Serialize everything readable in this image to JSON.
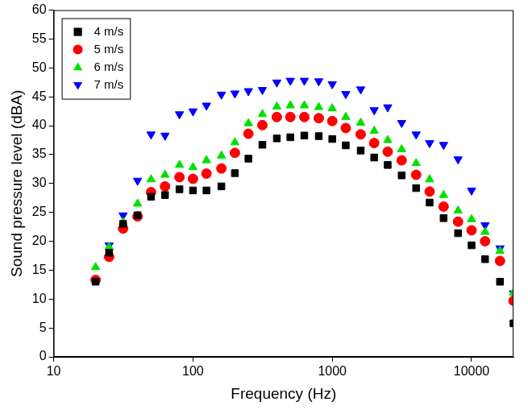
{
  "chart_data": {
    "type": "scatter",
    "x_label": "Frequency (Hz)",
    "y_label": "Sound pressure level (dBA)",
    "x": [
      20,
      25,
      31.5,
      40,
      50,
      63,
      80,
      100,
      125,
      160,
      200,
      250,
      315,
      400,
      500,
      630,
      800,
      1000,
      1250,
      1600,
      2000,
      2500,
      3150,
      4000,
      5000,
      6300,
      8000,
      10000,
      12500,
      16000,
      20000
    ],
    "series": [
      {
        "name": "4 m/s",
        "color": "#000000",
        "marker": "square",
        "values": [
          13,
          18,
          23,
          24.5,
          27.7,
          28,
          29,
          28.8,
          28.8,
          29.5,
          31.8,
          34.3,
          36.7,
          37.8,
          38,
          38.3,
          38.2,
          37.7,
          36.6,
          35.7,
          34.5,
          33.2,
          31.4,
          29.2,
          26.7,
          24,
          21.4,
          19.3,
          16.9,
          13,
          5.8
        ]
      },
      {
        "name": "5 m/s",
        "color": "#ff0000",
        "marker": "circle",
        "values": [
          13.3,
          17.3,
          22.2,
          24.3,
          28.5,
          29.5,
          31.1,
          30.8,
          31.7,
          32.6,
          35.3,
          38.6,
          40.1,
          41.5,
          41.5,
          41.5,
          41.3,
          40.8,
          39.6,
          38.5,
          37,
          35.5,
          34,
          31.5,
          28.6,
          26,
          23.4,
          21.9,
          20,
          16.6,
          9.7
        ]
      },
      {
        "name": "6 m/s",
        "color": "#00e000",
        "marker": "triangle",
        "values": [
          15.5,
          19,
          23.3,
          26.5,
          30.7,
          31.5,
          33.2,
          32.8,
          34,
          34.8,
          37.1,
          40.4,
          42,
          43.3,
          43.5,
          43.5,
          43.2,
          43,
          41.5,
          40.5,
          39.1,
          37.5,
          35.9,
          33.5,
          30.7,
          28,
          25.3,
          23.8,
          21.6,
          18.3,
          11.1
        ]
      },
      {
        "name": "7 m/s",
        "color": "#0000ff",
        "marker": "inverted_triangle",
        "values": [
          13.3,
          19.3,
          24.5,
          30.5,
          38.5,
          38.3,
          42,
          42.5,
          43.5,
          45.4,
          45.6,
          46,
          46.2,
          47.5,
          47.8,
          47.8,
          47.7,
          47.2,
          45.5,
          46.3,
          42.7,
          43.2,
          40.5,
          38.5,
          37,
          36.7,
          34.2,
          28.8,
          22.8,
          18.8,
          11
        ]
      }
    ],
    "log": "x",
    "xlim": [
      10,
      20000
    ],
    "xticks": [
      10,
      100,
      1000,
      10000
    ],
    "ylim": [
      0,
      60
    ],
    "yticks": [
      0,
      5,
      10,
      15,
      20,
      25,
      30,
      35,
      40,
      45,
      50,
      55,
      60
    ],
    "grid": false,
    "legend": "upper left"
  }
}
